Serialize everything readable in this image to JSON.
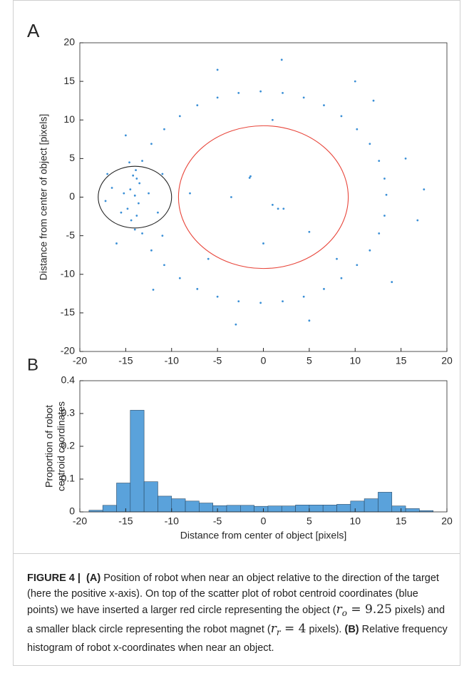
{
  "chart_data": [
    {
      "type": "scatter",
      "label": "A",
      "ylabel": "Distance from center of object [pixels]",
      "xlim": [
        -20,
        20
      ],
      "ylim": [
        -20,
        20
      ],
      "xticks": [
        -20,
        -15,
        -10,
        -5,
        0,
        5,
        10,
        15,
        20
      ],
      "yticks": [
        -20,
        -15,
        -10,
        -5,
        0,
        5,
        10,
        15,
        20
      ],
      "color": "#3a8fd6",
      "x": [
        13.4,
        13.2,
        12.6,
        11.6,
        10.2,
        8.5,
        6.6,
        4.4,
        2.1,
        -0.3,
        -2.7,
        -5.0,
        -7.2,
        -9.1,
        -10.8,
        -12.2,
        -13.2,
        -13.8,
        -14.0,
        -13.8,
        -13.2,
        -12.2,
        -10.8,
        -9.1,
        -7.2,
        -5.0,
        -2.7,
        -0.3,
        2.1,
        4.4,
        6.6,
        8.5,
        10.2,
        11.6,
        12.6,
        13.2,
        -14.5,
        -13.6,
        -14.2,
        -14.8,
        -13.9,
        -14.4,
        -15.2,
        -13.5,
        -14.6,
        -14.0,
        -15.5,
        -16.5,
        -17.2,
        -12.5,
        -11.5,
        15.5,
        16.8,
        17.5,
        -17,
        10,
        -5,
        2,
        -3,
        5,
        14,
        -12,
        12,
        -16,
        -15,
        -1.5,
        -1.4,
        -3.5,
        1,
        1.6,
        2.2,
        0,
        5,
        8,
        -8,
        -6,
        1,
        -11,
        -11
      ],
      "y": [
        0.3,
        2.4,
        4.7,
        6.9,
        8.8,
        10.5,
        11.9,
        12.9,
        13.5,
        13.7,
        13.5,
        12.9,
        11.9,
        10.5,
        8.8,
        6.9,
        4.7,
        2.4,
        0.2,
        -2.4,
        -4.7,
        -6.9,
        -8.8,
        -10.5,
        -11.9,
        -12.9,
        -13.5,
        -13.7,
        -13.5,
        -12.9,
        -11.9,
        -10.5,
        -8.8,
        -6.9,
        -4.7,
        -2.4,
        1,
        -0.8,
        2.8,
        -1.5,
        3.5,
        -3,
        0.5,
        1.8,
        4.5,
        -4.2,
        -2,
        1.2,
        -0.5,
        0.5,
        -2,
        5,
        -3,
        1,
        3,
        15,
        16.5,
        17.8,
        -16.5,
        -16,
        -11,
        -12,
        12.5,
        -6,
        8,
        2.5,
        2.7,
        0,
        -1,
        -1.5,
        -1.5,
        -6,
        -4.5,
        -8,
        0.5,
        -8,
        10,
        -5,
        3
      ],
      "circles": [
        {
          "cx": 0,
          "cy": 0,
          "r": 9.25,
          "color": "#e8463b"
        },
        {
          "cx": -14,
          "cy": 0,
          "r": 4,
          "color": "#222222"
        }
      ]
    },
    {
      "type": "histogram",
      "label": "B",
      "xlabel": "Distance from center of object [pixels]",
      "ylabel": [
        "Proportion of robot",
        "centroid coordinates"
      ],
      "xlim": [
        -20,
        20
      ],
      "ylim": [
        0,
        0.4
      ],
      "xticks": [
        -20,
        -15,
        -10,
        -5,
        0,
        5,
        10,
        15,
        20
      ],
      "yticks": [
        0,
        0.1,
        0.2,
        0.3,
        0.4
      ],
      "color": "#5aa2db",
      "bins": [
        -19,
        -17.5,
        -16,
        -14.5,
        -13,
        -11.5,
        -10,
        -8.5,
        -7,
        -5.5,
        -4,
        -2.5,
        -1,
        0.5,
        2,
        3.5,
        5,
        6.5,
        8,
        9.5,
        11,
        12.5,
        14,
        15.5,
        17,
        18.5
      ],
      "values": [
        0.005,
        0.02,
        0.088,
        0.31,
        0.092,
        0.048,
        0.04,
        0.033,
        0.027,
        0.019,
        0.02,
        0.02,
        0.017,
        0.018,
        0.018,
        0.021,
        0.021,
        0.021,
        0.023,
        0.033,
        0.04,
        0.06,
        0.018,
        0.01,
        0.004
      ]
    }
  ],
  "caption": {
    "figure": "FIGURE 4 |",
    "a": "(A)",
    "t1": " Position of robot when near an object relative to the direction of the target (here the positive x-axis). On top of the scatter plot of robot centroid coordinates (blue points) we have inserted a larger red circle representing the object (",
    "m1": "r",
    "s1": "o",
    "e1": " = 9.25",
    "t2": " pixels) and a smaller black circle representing the robot magnet (",
    "m2": "r",
    "s2": "r",
    "e2": " = 4",
    "t3": " pixels). ",
    "b": "(B)",
    "t4": " Relative frequency histogram of robot x-coordinates when near an object."
  }
}
